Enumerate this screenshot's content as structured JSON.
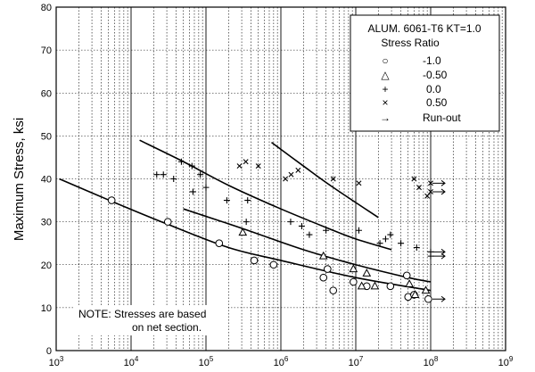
{
  "chart_data": {
    "type": "scatter",
    "x_scale": "log",
    "xlim": [
      1000,
      1000000000
    ],
    "ylim": [
      0,
      80
    ],
    "ylabel": "Maximum Stress, ksi",
    "xlabel": "",
    "y_ticks": [
      "0",
      "10",
      "20",
      "30",
      "40",
      "50",
      "60",
      "70",
      "80"
    ],
    "x_ticks": [
      {
        "base": "10",
        "exp": "3"
      },
      {
        "base": "10",
        "exp": "4"
      },
      {
        "base": "10",
        "exp": "5"
      },
      {
        "base": "10",
        "exp": "6"
      },
      {
        "base": "10",
        "exp": "7"
      },
      {
        "base": "10",
        "exp": "8"
      },
      {
        "base": "10",
        "exp": "9"
      }
    ],
    "grid": true,
    "legend": {
      "position": "top-right",
      "title": "ALUM. 6061-T6 KT=1.0",
      "subtitle": "Stress Ratio",
      "entries": [
        {
          "symbol": "○",
          "label": "-1.0"
        },
        {
          "symbol": "△",
          "label": "-0.50"
        },
        {
          "symbol": "+",
          "label": "0.0"
        },
        {
          "symbol": "×",
          "label": "0.50"
        },
        {
          "symbol": "→",
          "label": "Run-out"
        }
      ]
    },
    "note": [
      "NOTE: Stresses are based",
      "on net section."
    ],
    "series": [
      {
        "name": "-1.0",
        "marker": "circle",
        "points": [
          [
            5500,
            35
          ],
          [
            31000,
            30
          ],
          [
            150000,
            25
          ],
          [
            440000,
            21
          ],
          [
            800000,
            20
          ],
          [
            3700000,
            17
          ],
          [
            4200000,
            19
          ],
          [
            5000000,
            14
          ],
          [
            9300000,
            16
          ],
          [
            14000000,
            15
          ],
          [
            29000000,
            15
          ],
          [
            48000000,
            17.5
          ],
          [
            50000000,
            12.5
          ],
          [
            60000000,
            13
          ],
          [
            93000000,
            12
          ]
        ]
      },
      {
        "name": "-0.50",
        "marker": "triangle",
        "points": [
          [
            310000,
            27.5
          ],
          [
            3700000,
            22
          ],
          [
            9300000,
            19
          ],
          [
            12000000,
            15
          ],
          [
            14000000,
            18
          ],
          [
            18000000,
            15
          ],
          [
            52000000,
            15.5
          ],
          [
            62000000,
            13
          ],
          [
            86000000,
            14
          ]
        ]
      },
      {
        "name": "0.0",
        "marker": "plus",
        "points": [
          [
            22000,
            41
          ],
          [
            27000,
            41
          ],
          [
            37000,
            40
          ],
          [
            47000,
            44
          ],
          [
            65000,
            43
          ],
          [
            67000,
            37
          ],
          [
            84000,
            41
          ],
          [
            100000,
            38
          ],
          [
            190000,
            35
          ],
          [
            345000,
            30
          ],
          [
            360000,
            35
          ],
          [
            1350000,
            30
          ],
          [
            1900000,
            29
          ],
          [
            2400000,
            27
          ],
          [
            4000000,
            28
          ],
          [
            11000000,
            28
          ],
          [
            21000000,
            25
          ],
          [
            25000000,
            26
          ],
          [
            29000000,
            27
          ],
          [
            40000000,
            25
          ],
          [
            65000000,
            24
          ],
          [
            100000000,
            22
          ],
          [
            100000000,
            23
          ]
        ]
      },
      {
        "name": "0.50",
        "marker": "cross",
        "points": [
          [
            280000,
            43
          ],
          [
            340000,
            44
          ],
          [
            500000,
            43
          ],
          [
            1150000,
            40
          ],
          [
            1370000,
            41
          ],
          [
            1700000,
            42
          ],
          [
            5000000,
            40
          ],
          [
            11000000,
            39
          ],
          [
            60000000,
            40
          ],
          [
            70000000,
            38
          ],
          [
            90000000,
            36
          ],
          [
            100000000,
            39
          ],
          [
            100000000,
            37
          ]
        ]
      }
    ],
    "fit_curves": [
      [
        [
          1100,
          40
        ],
        [
          6000,
          34.5
        ],
        [
          30000,
          29.5
        ],
        [
          200000,
          24
        ],
        [
          1000000,
          21
        ],
        [
          10000000,
          17
        ],
        [
          100000000,
          14
        ]
      ],
      [
        [
          13000,
          49
        ],
        [
          50000,
          44
        ],
        [
          200000,
          38.5
        ],
        [
          1000000,
          33
        ],
        [
          5000000,
          28
        ],
        [
          10000000,
          26
        ],
        [
          30000000,
          23.5
        ]
      ],
      [
        [
          50000,
          33
        ],
        [
          300000,
          28.5
        ],
        [
          2000000,
          23.5
        ],
        [
          10000000,
          20
        ],
        [
          50000000,
          17
        ],
        [
          100000000,
          16
        ]
      ],
      [
        [
          750000,
          48.5
        ],
        [
          2000000,
          43
        ],
        [
          5000000,
          38
        ],
        [
          20000000,
          31
        ]
      ]
    ],
    "runouts": [
      [
        100000000,
        39
      ],
      [
        100000000,
        37
      ],
      [
        100000000,
        23
      ],
      [
        100000000,
        22
      ],
      [
        100000000,
        12
      ]
    ]
  }
}
